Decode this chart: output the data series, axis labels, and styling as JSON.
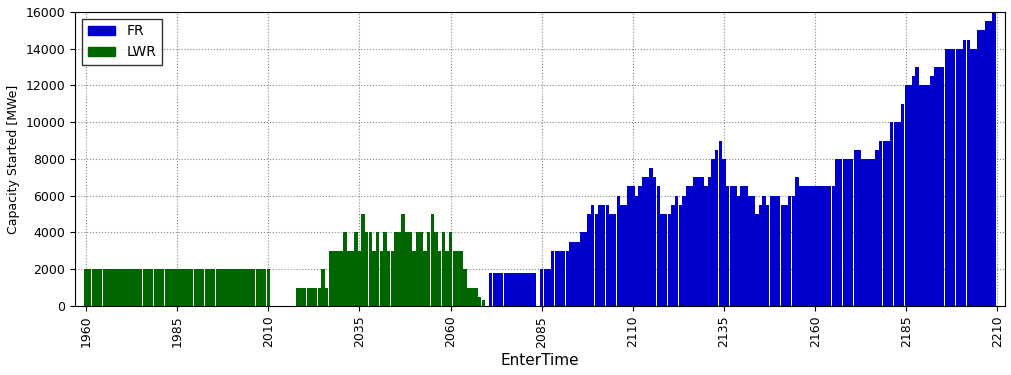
{
  "title": "",
  "xlabel": "EnterTime",
  "ylabel": "Capacity Started [MWe]",
  "ylim": [
    0,
    16000
  ],
  "yticks": [
    0,
    2000,
    4000,
    6000,
    8000,
    10000,
    12000,
    14000,
    16000
  ],
  "xticks": [
    1960,
    1985,
    2010,
    2035,
    2060,
    2085,
    2110,
    2135,
    2160,
    2185,
    2210
  ],
  "fr_color": "#0000CC",
  "lwr_color": "#006600",
  "bg_color": "#ffffff",
  "legend_fr": "FR",
  "legend_lwr": "LWR",
  "bar_width": 0.95,
  "lwr_data": [
    [
      1960,
      2000
    ],
    [
      1961,
      2000
    ],
    [
      1962,
      2000
    ],
    [
      1963,
      2000
    ],
    [
      1964,
      2000
    ],
    [
      1965,
      2000
    ],
    [
      1966,
      2000
    ],
    [
      1967,
      2000
    ],
    [
      1968,
      2000
    ],
    [
      1969,
      2000
    ],
    [
      1970,
      2000
    ],
    [
      1971,
      2000
    ],
    [
      1972,
      2000
    ],
    [
      1973,
      2000
    ],
    [
      1974,
      2000
    ],
    [
      1975,
      2000
    ],
    [
      1976,
      2000
    ],
    [
      1977,
      2000
    ],
    [
      1978,
      2000
    ],
    [
      1979,
      2000
    ],
    [
      1980,
      2000
    ],
    [
      1981,
      2000
    ],
    [
      1982,
      2000
    ],
    [
      1983,
      2000
    ],
    [
      1984,
      2000
    ],
    [
      1985,
      2000
    ],
    [
      1986,
      2000
    ],
    [
      1987,
      2000
    ],
    [
      1988,
      2000
    ],
    [
      1989,
      2000
    ],
    [
      1990,
      2000
    ],
    [
      1991,
      2000
    ],
    [
      1992,
      2000
    ],
    [
      1993,
      2000
    ],
    [
      1994,
      2000
    ],
    [
      1995,
      2000
    ],
    [
      1996,
      2000
    ],
    [
      1997,
      2000
    ],
    [
      1998,
      2000
    ],
    [
      1999,
      2000
    ],
    [
      2000,
      2000
    ],
    [
      2001,
      2000
    ],
    [
      2002,
      2000
    ],
    [
      2003,
      2000
    ],
    [
      2004,
      2000
    ],
    [
      2005,
      2000
    ],
    [
      2006,
      2000
    ],
    [
      2007,
      2000
    ],
    [
      2008,
      2000
    ],
    [
      2009,
      2000
    ],
    [
      2010,
      2000
    ],
    [
      2018,
      1000
    ],
    [
      2019,
      1000
    ],
    [
      2020,
      1000
    ],
    [
      2021,
      1000
    ],
    [
      2022,
      1000
    ],
    [
      2023,
      1000
    ],
    [
      2024,
      1000
    ],
    [
      2025,
      2000
    ],
    [
      2026,
      1000
    ],
    [
      2027,
      3000
    ],
    [
      2028,
      3000
    ],
    [
      2029,
      3000
    ],
    [
      2030,
      3000
    ],
    [
      2031,
      4000
    ],
    [
      2032,
      3000
    ],
    [
      2033,
      3000
    ],
    [
      2034,
      4000
    ],
    [
      2035,
      3000
    ],
    [
      2036,
      5000
    ],
    [
      2037,
      4000
    ],
    [
      2038,
      4000
    ],
    [
      2039,
      3000
    ],
    [
      2040,
      4000
    ],
    [
      2041,
      3000
    ],
    [
      2042,
      4000
    ],
    [
      2043,
      3000
    ],
    [
      2044,
      3000
    ],
    [
      2045,
      4000
    ],
    [
      2046,
      4000
    ],
    [
      2047,
      5000
    ],
    [
      2048,
      4000
    ],
    [
      2049,
      4000
    ],
    [
      2050,
      3000
    ],
    [
      2051,
      4000
    ],
    [
      2052,
      4000
    ],
    [
      2053,
      3000
    ],
    [
      2054,
      4000
    ],
    [
      2055,
      5000
    ],
    [
      2056,
      4000
    ],
    [
      2057,
      3000
    ],
    [
      2058,
      4000
    ],
    [
      2059,
      3000
    ],
    [
      2060,
      4000
    ],
    [
      2061,
      3000
    ],
    [
      2062,
      3000
    ],
    [
      2063,
      3000
    ],
    [
      2064,
      2000
    ],
    [
      2065,
      1000
    ],
    [
      2066,
      1000
    ],
    [
      2067,
      1000
    ],
    [
      2068,
      500
    ],
    [
      2069,
      300
    ]
  ],
  "fr_data": [
    [
      2071,
      1800
    ],
    [
      2072,
      1800
    ],
    [
      2073,
      1800
    ],
    [
      2074,
      1800
    ],
    [
      2075,
      1800
    ],
    [
      2076,
      1800
    ],
    [
      2077,
      1800
    ],
    [
      2078,
      1800
    ],
    [
      2079,
      1800
    ],
    [
      2080,
      1800
    ],
    [
      2081,
      1800
    ],
    [
      2082,
      1800
    ],
    [
      2083,
      1800
    ],
    [
      2085,
      2000
    ],
    [
      2086,
      2000
    ],
    [
      2087,
      2000
    ],
    [
      2088,
      3000
    ],
    [
      2089,
      3000
    ],
    [
      2090,
      3000
    ],
    [
      2091,
      3000
    ],
    [
      2092,
      3000
    ],
    [
      2093,
      3500
    ],
    [
      2094,
      3500
    ],
    [
      2095,
      3500
    ],
    [
      2096,
      4000
    ],
    [
      2097,
      4000
    ],
    [
      2098,
      5000
    ],
    [
      2099,
      5500
    ],
    [
      2100,
      5000
    ],
    [
      2101,
      5500
    ],
    [
      2102,
      5500
    ],
    [
      2103,
      5500
    ],
    [
      2104,
      5000
    ],
    [
      2105,
      5000
    ],
    [
      2106,
      6000
    ],
    [
      2107,
      5500
    ],
    [
      2108,
      5500
    ],
    [
      2109,
      6500
    ],
    [
      2110,
      6500
    ],
    [
      2111,
      6000
    ],
    [
      2112,
      6500
    ],
    [
      2113,
      7000
    ],
    [
      2114,
      7000
    ],
    [
      2115,
      7500
    ],
    [
      2116,
      7000
    ],
    [
      2117,
      6500
    ],
    [
      2118,
      5000
    ],
    [
      2119,
      5000
    ],
    [
      2120,
      5000
    ],
    [
      2121,
      5500
    ],
    [
      2122,
      6000
    ],
    [
      2123,
      5500
    ],
    [
      2124,
      6000
    ],
    [
      2125,
      6500
    ],
    [
      2126,
      6500
    ],
    [
      2127,
      7000
    ],
    [
      2128,
      7000
    ],
    [
      2129,
      7000
    ],
    [
      2130,
      6500
    ],
    [
      2131,
      7000
    ],
    [
      2132,
      8000
    ],
    [
      2133,
      8500
    ],
    [
      2134,
      9000
    ],
    [
      2135,
      8000
    ],
    [
      2136,
      6500
    ],
    [
      2137,
      6500
    ],
    [
      2138,
      6500
    ],
    [
      2139,
      6000
    ],
    [
      2140,
      6500
    ],
    [
      2141,
      6500
    ],
    [
      2142,
      6000
    ],
    [
      2143,
      6000
    ],
    [
      2144,
      5000
    ],
    [
      2145,
      5500
    ],
    [
      2146,
      6000
    ],
    [
      2147,
      5500
    ],
    [
      2148,
      6000
    ],
    [
      2149,
      6000
    ],
    [
      2150,
      6000
    ],
    [
      2151,
      5500
    ],
    [
      2152,
      5500
    ],
    [
      2153,
      6000
    ],
    [
      2154,
      6000
    ],
    [
      2155,
      7000
    ],
    [
      2156,
      6500
    ],
    [
      2157,
      6500
    ],
    [
      2158,
      6500
    ],
    [
      2159,
      6500
    ],
    [
      2160,
      6500
    ],
    [
      2161,
      6500
    ],
    [
      2162,
      6500
    ],
    [
      2163,
      6500
    ],
    [
      2164,
      6500
    ],
    [
      2165,
      6500
    ],
    [
      2166,
      8000
    ],
    [
      2167,
      8000
    ],
    [
      2168,
      8000
    ],
    [
      2169,
      8000
    ],
    [
      2170,
      8000
    ],
    [
      2171,
      8500
    ],
    [
      2172,
      8500
    ],
    [
      2173,
      8000
    ],
    [
      2174,
      8000
    ],
    [
      2175,
      8000
    ],
    [
      2176,
      8000
    ],
    [
      2177,
      8500
    ],
    [
      2178,
      9000
    ],
    [
      2179,
      9000
    ],
    [
      2180,
      9000
    ],
    [
      2181,
      10000
    ],
    [
      2182,
      10000
    ],
    [
      2183,
      10000
    ],
    [
      2184,
      11000
    ],
    [
      2185,
      12000
    ],
    [
      2186,
      12000
    ],
    [
      2187,
      12500
    ],
    [
      2188,
      13000
    ],
    [
      2189,
      12000
    ],
    [
      2190,
      12000
    ],
    [
      2191,
      12000
    ],
    [
      2192,
      12500
    ],
    [
      2193,
      13000
    ],
    [
      2194,
      13000
    ],
    [
      2195,
      13000
    ],
    [
      2196,
      14000
    ],
    [
      2197,
      14000
    ],
    [
      2198,
      14000
    ],
    [
      2199,
      14000
    ],
    [
      2200,
      14000
    ],
    [
      2201,
      14500
    ],
    [
      2202,
      14500
    ],
    [
      2203,
      14000
    ],
    [
      2204,
      14000
    ],
    [
      2205,
      15000
    ],
    [
      2206,
      15000
    ],
    [
      2207,
      15500
    ],
    [
      2208,
      15500
    ],
    [
      2209,
      16000
    ]
  ],
  "xlim": [
    1957,
    2212
  ]
}
